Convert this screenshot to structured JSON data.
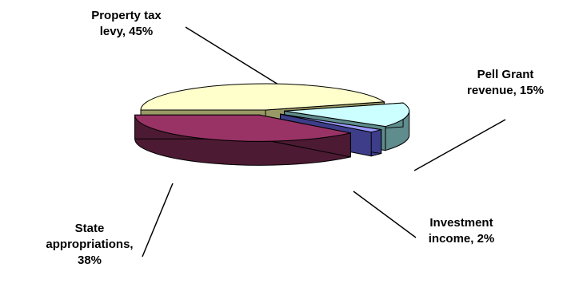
{
  "chart_data": {
    "type": "pie",
    "style": "3d-exploded",
    "slices": [
      {
        "label_lines": [
          "Property tax",
          "levy, 45%"
        ],
        "category": "Property tax levy",
        "value": 45,
        "top_color": "#ffffcc",
        "side_color": "#999966"
      },
      {
        "label_lines": [
          "Pell Grant",
          "revenue, 15%"
        ],
        "category": "Pell Grant revenue",
        "value": 15,
        "top_color": "#ccffff",
        "side_color": "#5f8c8c"
      },
      {
        "label_lines": [
          "Investment",
          "income, 2%"
        ],
        "category": "Investment income",
        "value": 2,
        "top_color": "#9999ff",
        "side_color": "#3d3d8a"
      },
      {
        "label_lines": [
          "State",
          "appropriations,",
          "38%"
        ],
        "category": "State appropriations",
        "value": 38,
        "top_color": "#993366",
        "side_color": "#4d1a33"
      }
    ]
  }
}
